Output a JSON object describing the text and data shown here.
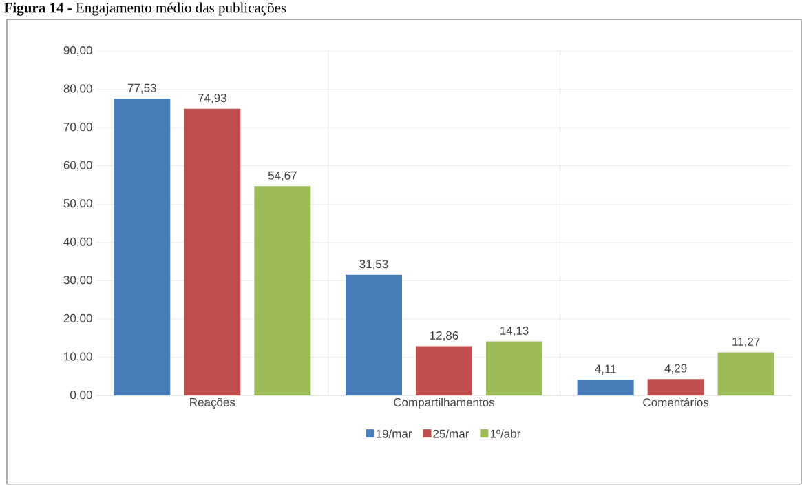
{
  "chart_data": {
    "type": "bar",
    "title": "**Figura 14 -** Engajamento médio das publicações",
    "categories": [
      "Reações",
      "Compartilhamentos",
      "Comentários"
    ],
    "series": [
      {
        "name": "19/mar",
        "color": "#4a7ebb",
        "values": [
          77.53,
          31.53,
          4.11
        ],
        "value_labels": [
          "77,53",
          "31,53",
          "4,11"
        ]
      },
      {
        "name": "25/mar",
        "color": "#c0504d",
        "values": [
          74.93,
          12.86,
          4.29
        ],
        "value_labels": [
          "74,93",
          "12,86",
          "4,29"
        ]
      },
      {
        "name": "1º/abr",
        "color": "#9bbb59",
        "values": [
          54.67,
          14.13,
          11.27
        ],
        "value_labels": [
          "54,67",
          "14,13",
          "11,27"
        ]
      }
    ],
    "ylim": [
      0,
      90
    ],
    "yticks": [
      {
        "value": 0,
        "label": "0,00"
      },
      {
        "value": 10,
        "label": "10,00"
      },
      {
        "value": 20,
        "label": "20,00"
      },
      {
        "value": 30,
        "label": "30,00"
      },
      {
        "value": 40,
        "label": "40,00"
      },
      {
        "value": 50,
        "label": "50,00"
      },
      {
        "value": 60,
        "label": "60,00"
      },
      {
        "value": 70,
        "label": "70,00"
      },
      {
        "value": 80,
        "label": "80,00"
      },
      {
        "value": 90,
        "label": "90,00"
      }
    ],
    "grid": "y",
    "legend": "bottom"
  }
}
